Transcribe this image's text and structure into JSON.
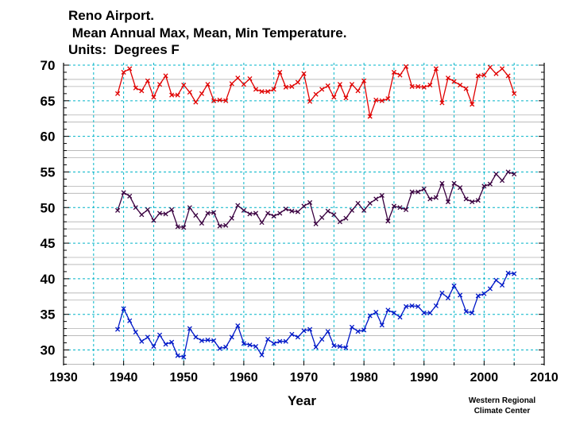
{
  "chart_data": {
    "type": "line",
    "title_lines": [
      "Reno Airport.",
      " Mean Annual Max, Mean, Min Temperature.",
      "Units:  Degrees F"
    ],
    "xlabel": "Year",
    "ylabel": "",
    "xlim": [
      1930,
      2010
    ],
    "ylim": [
      28,
      71
    ],
    "x_ticks": [
      1930,
      1940,
      1950,
      1960,
      1970,
      1980,
      1990,
      2000,
      2010
    ],
    "y_ticks": [
      30,
      35,
      40,
      45,
      50,
      55,
      60,
      65,
      70
    ],
    "grid": true,
    "credit_lines": [
      "Western Regional",
      "Climate Center"
    ],
    "colors": {
      "max": "#e00000",
      "mean": "#3a0040",
      "min": "#0018c8",
      "grid_major": "#00b4c8",
      "grid_minor": "#b0b0b0"
    },
    "x": [
      1939,
      1940,
      1941,
      1942,
      1943,
      1944,
      1945,
      1946,
      1947,
      1948,
      1949,
      1950,
      1951,
      1952,
      1953,
      1954,
      1955,
      1956,
      1957,
      1958,
      1959,
      1960,
      1961,
      1962,
      1963,
      1964,
      1965,
      1966,
      1967,
      1968,
      1969,
      1970,
      1971,
      1972,
      1973,
      1974,
      1975,
      1976,
      1977,
      1978,
      1979,
      1980,
      1981,
      1982,
      1983,
      1984,
      1985,
      1986,
      1987,
      1988,
      1989,
      1990,
      1991,
      1992,
      1993,
      1994,
      1995,
      1996,
      1997,
      1998,
      1999,
      2000,
      2001,
      2002,
      2003,
      2004,
      2005
    ],
    "series": [
      {
        "name": "Max",
        "color_key": "max",
        "values": [
          66.0,
          69.0,
          69.5,
          66.8,
          66.4,
          67.8,
          65.5,
          67.3,
          68.5,
          65.8,
          65.8,
          67.2,
          66.2,
          64.8,
          66.0,
          67.3,
          65.0,
          65.1,
          65.0,
          67.4,
          68.2,
          67.3,
          68.1,
          66.6,
          66.3,
          66.3,
          66.6,
          69.0,
          66.9,
          67.0,
          67.6,
          68.8,
          64.9,
          65.9,
          66.6,
          67.1,
          65.5,
          67.3,
          65.4,
          67.3,
          66.4,
          67.8,
          62.8,
          65.1,
          65.0,
          65.3,
          69.0,
          68.6,
          69.8,
          67.0,
          67.0,
          66.9,
          67.2,
          69.5,
          64.7,
          68.2,
          67.7,
          67.2,
          66.7,
          64.5,
          68.5,
          68.6,
          69.7,
          68.8,
          69.5,
          68.5,
          66.0
        ]
      },
      {
        "name": "Mean",
        "color_key": "mean",
        "values": [
          49.6,
          52.1,
          51.6,
          50.0,
          49.0,
          49.7,
          48.2,
          49.2,
          49.1,
          49.7,
          47.3,
          47.2,
          50.0,
          48.9,
          47.8,
          49.2,
          49.3,
          47.4,
          47.5,
          48.5,
          50.3,
          49.6,
          49.1,
          49.2,
          47.9,
          49.2,
          48.8,
          49.2,
          49.8,
          49.5,
          49.4,
          50.2,
          50.7,
          47.7,
          48.6,
          49.5,
          49.0,
          48.0,
          48.5,
          49.6,
          50.6,
          49.6,
          50.6,
          51.2,
          51.7,
          48.1,
          50.2,
          50.0,
          49.7,
          52.2,
          52.2,
          52.6,
          51.2,
          51.4,
          53.4,
          50.8,
          53.4,
          52.8,
          51.2,
          50.8,
          51.0,
          53.0,
          53.3,
          54.7,
          53.8,
          55.0,
          54.7
        ]
      },
      {
        "name": "Min",
        "color_key": "min",
        "values": [
          32.9,
          35.8,
          34.1,
          32.5,
          31.2,
          31.8,
          30.5,
          32.1,
          30.8,
          31.1,
          29.2,
          29.0,
          33.0,
          31.8,
          31.3,
          31.4,
          31.3,
          30.2,
          30.4,
          31.8,
          33.4,
          30.9,
          30.7,
          30.5,
          29.3,
          31.5,
          30.9,
          31.2,
          31.2,
          32.2,
          31.8,
          32.7,
          32.9,
          30.4,
          31.5,
          32.6,
          30.6,
          30.5,
          30.3,
          33.2,
          32.6,
          32.8,
          34.8,
          35.3,
          33.5,
          35.6,
          35.2,
          34.6,
          36.1,
          36.2,
          36.1,
          35.2,
          35.2,
          36.2,
          38.0,
          37.3,
          39.0,
          37.7,
          35.4,
          35.2,
          37.6,
          37.9,
          38.6,
          39.8,
          39.1,
          40.8,
          40.7
        ]
      }
    ]
  }
}
